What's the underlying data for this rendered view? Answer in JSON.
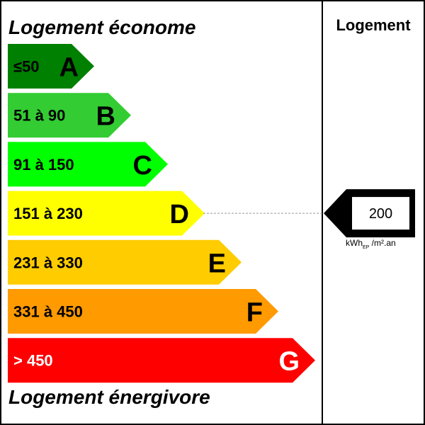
{
  "header": {
    "top_label": "Logement économe",
    "bottom_label": "Logement énergivore",
    "column_title": "Logement"
  },
  "classes": [
    {
      "letter": "A",
      "range": "≤50",
      "color": "#008000",
      "letter_color": "#000000"
    },
    {
      "letter": "B",
      "range": "51 à 90",
      "color": "#33cc33",
      "letter_color": "#000000"
    },
    {
      "letter": "C",
      "range": "91 à 150",
      "color": "#00ff00",
      "letter_color": "#000000"
    },
    {
      "letter": "D",
      "range": "151 à 230",
      "color": "#ffff00",
      "letter_color": "#000000"
    },
    {
      "letter": "E",
      "range": "231 à 330",
      "color": "#ffcc00",
      "letter_color": "#000000"
    },
    {
      "letter": "F",
      "range": "331 à 450",
      "color": "#ff9a00",
      "letter_color": "#000000"
    },
    {
      "letter": "G",
      "range": "> 450",
      "color": "#ff0000",
      "letter_color": "#ffffff",
      "range_color": "#ffffff"
    }
  ],
  "indicator": {
    "value": "200",
    "class": "D",
    "unit_prefix": "kWh",
    "unit_sub": "EP",
    "unit_suffix": " /m².an"
  }
}
